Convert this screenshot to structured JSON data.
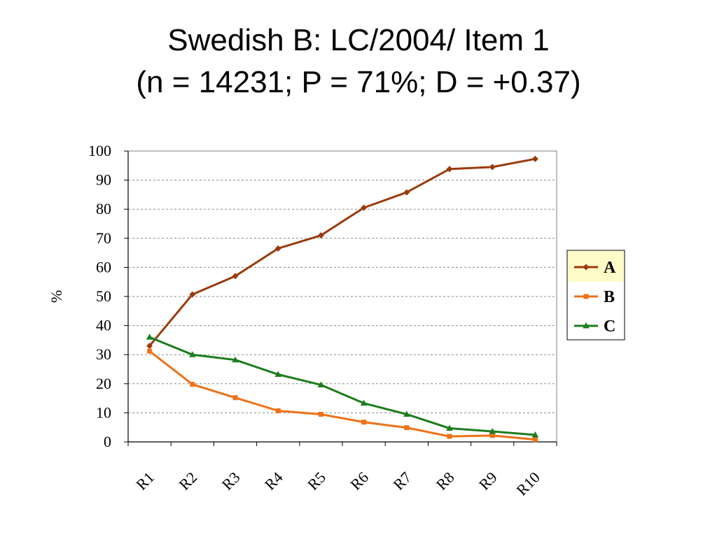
{
  "slide": {
    "title_line1": "Swedish B: LC/2004/ Item 1",
    "title_line2": "(n = 14231; P = 71%; D = +0.37)"
  },
  "chart_data": {
    "type": "line",
    "ylabel": "%",
    "ylim": [
      0,
      100
    ],
    "yticks": [
      0,
      10,
      20,
      30,
      40,
      50,
      60,
      70,
      80,
      90,
      100
    ],
    "grid": true,
    "legend_position": "right",
    "categories": [
      "R1",
      "R2",
      "R3",
      "R4",
      "R5",
      "R6",
      "R7",
      "R8",
      "R9",
      "R10"
    ],
    "series": [
      {
        "name": "A",
        "color": "#9A3B0C",
        "marker": "diamond",
        "values": [
          33,
          50.7,
          57,
          66.5,
          71,
          80.5,
          85.8,
          93.8,
          94.5,
          97.3
        ]
      },
      {
        "name": "B",
        "color": "#F07117",
        "marker": "square",
        "values": [
          31.2,
          19.8,
          15.2,
          10.7,
          9.5,
          6.8,
          4.9,
          1.9,
          2.2,
          0.8
        ]
      },
      {
        "name": "C",
        "color": "#1C7D1C",
        "marker": "triangle",
        "values": [
          36,
          30,
          28.2,
          23.2,
          19.6,
          13.3,
          9.5,
          4.7,
          3.6,
          2.4
        ]
      }
    ],
    "legend_highlight_color": "#FFFBC8"
  }
}
